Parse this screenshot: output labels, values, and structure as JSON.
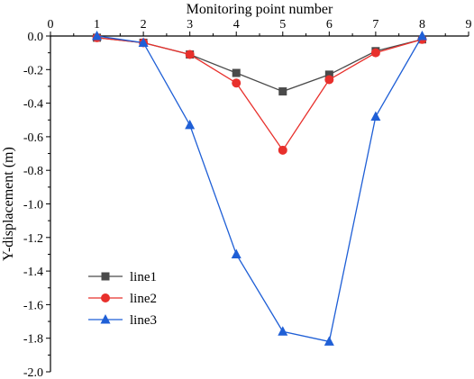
{
  "chart_data": {
    "type": "line",
    "xlabel": "Monitoring point number",
    "ylabel": "Y-displacement (m)",
    "xlim": [
      0,
      9
    ],
    "ylim": [
      -2.0,
      0.0
    ],
    "x_ticks": [
      "0",
      "1",
      "2",
      "3",
      "4",
      "5",
      "6",
      "7",
      "8",
      "9"
    ],
    "y_ticks": [
      "0.0",
      "-0.2",
      "-0.4",
      "-0.6",
      "-0.8",
      "-1.0",
      "-1.2",
      "-1.4",
      "-1.6",
      "-1.8",
      "-2.0"
    ],
    "x_axis_position": "top",
    "grid": false,
    "legend_position": "bottom-left",
    "series": [
      {
        "name": "line1",
        "color": "#4a4a4a",
        "marker": "square",
        "x": [
          1,
          2,
          3,
          4,
          5,
          6,
          7,
          8
        ],
        "y": [
          -0.01,
          -0.04,
          -0.11,
          -0.22,
          -0.33,
          -0.23,
          -0.09,
          -0.02
        ]
      },
      {
        "name": "line2",
        "color": "#e8302c",
        "marker": "circle",
        "x": [
          1,
          2,
          3,
          4,
          5,
          6,
          7,
          8
        ],
        "y": [
          -0.01,
          -0.04,
          -0.11,
          -0.28,
          -0.68,
          -0.26,
          -0.1,
          -0.02
        ]
      },
      {
        "name": "line3",
        "color": "#1f5fd6",
        "marker": "triangle",
        "x": [
          1,
          2,
          3,
          4,
          5,
          6,
          7,
          8
        ],
        "y": [
          0.0,
          -0.04,
          -0.53,
          -1.3,
          -1.76,
          -1.82,
          -0.48,
          0.0
        ]
      }
    ]
  }
}
